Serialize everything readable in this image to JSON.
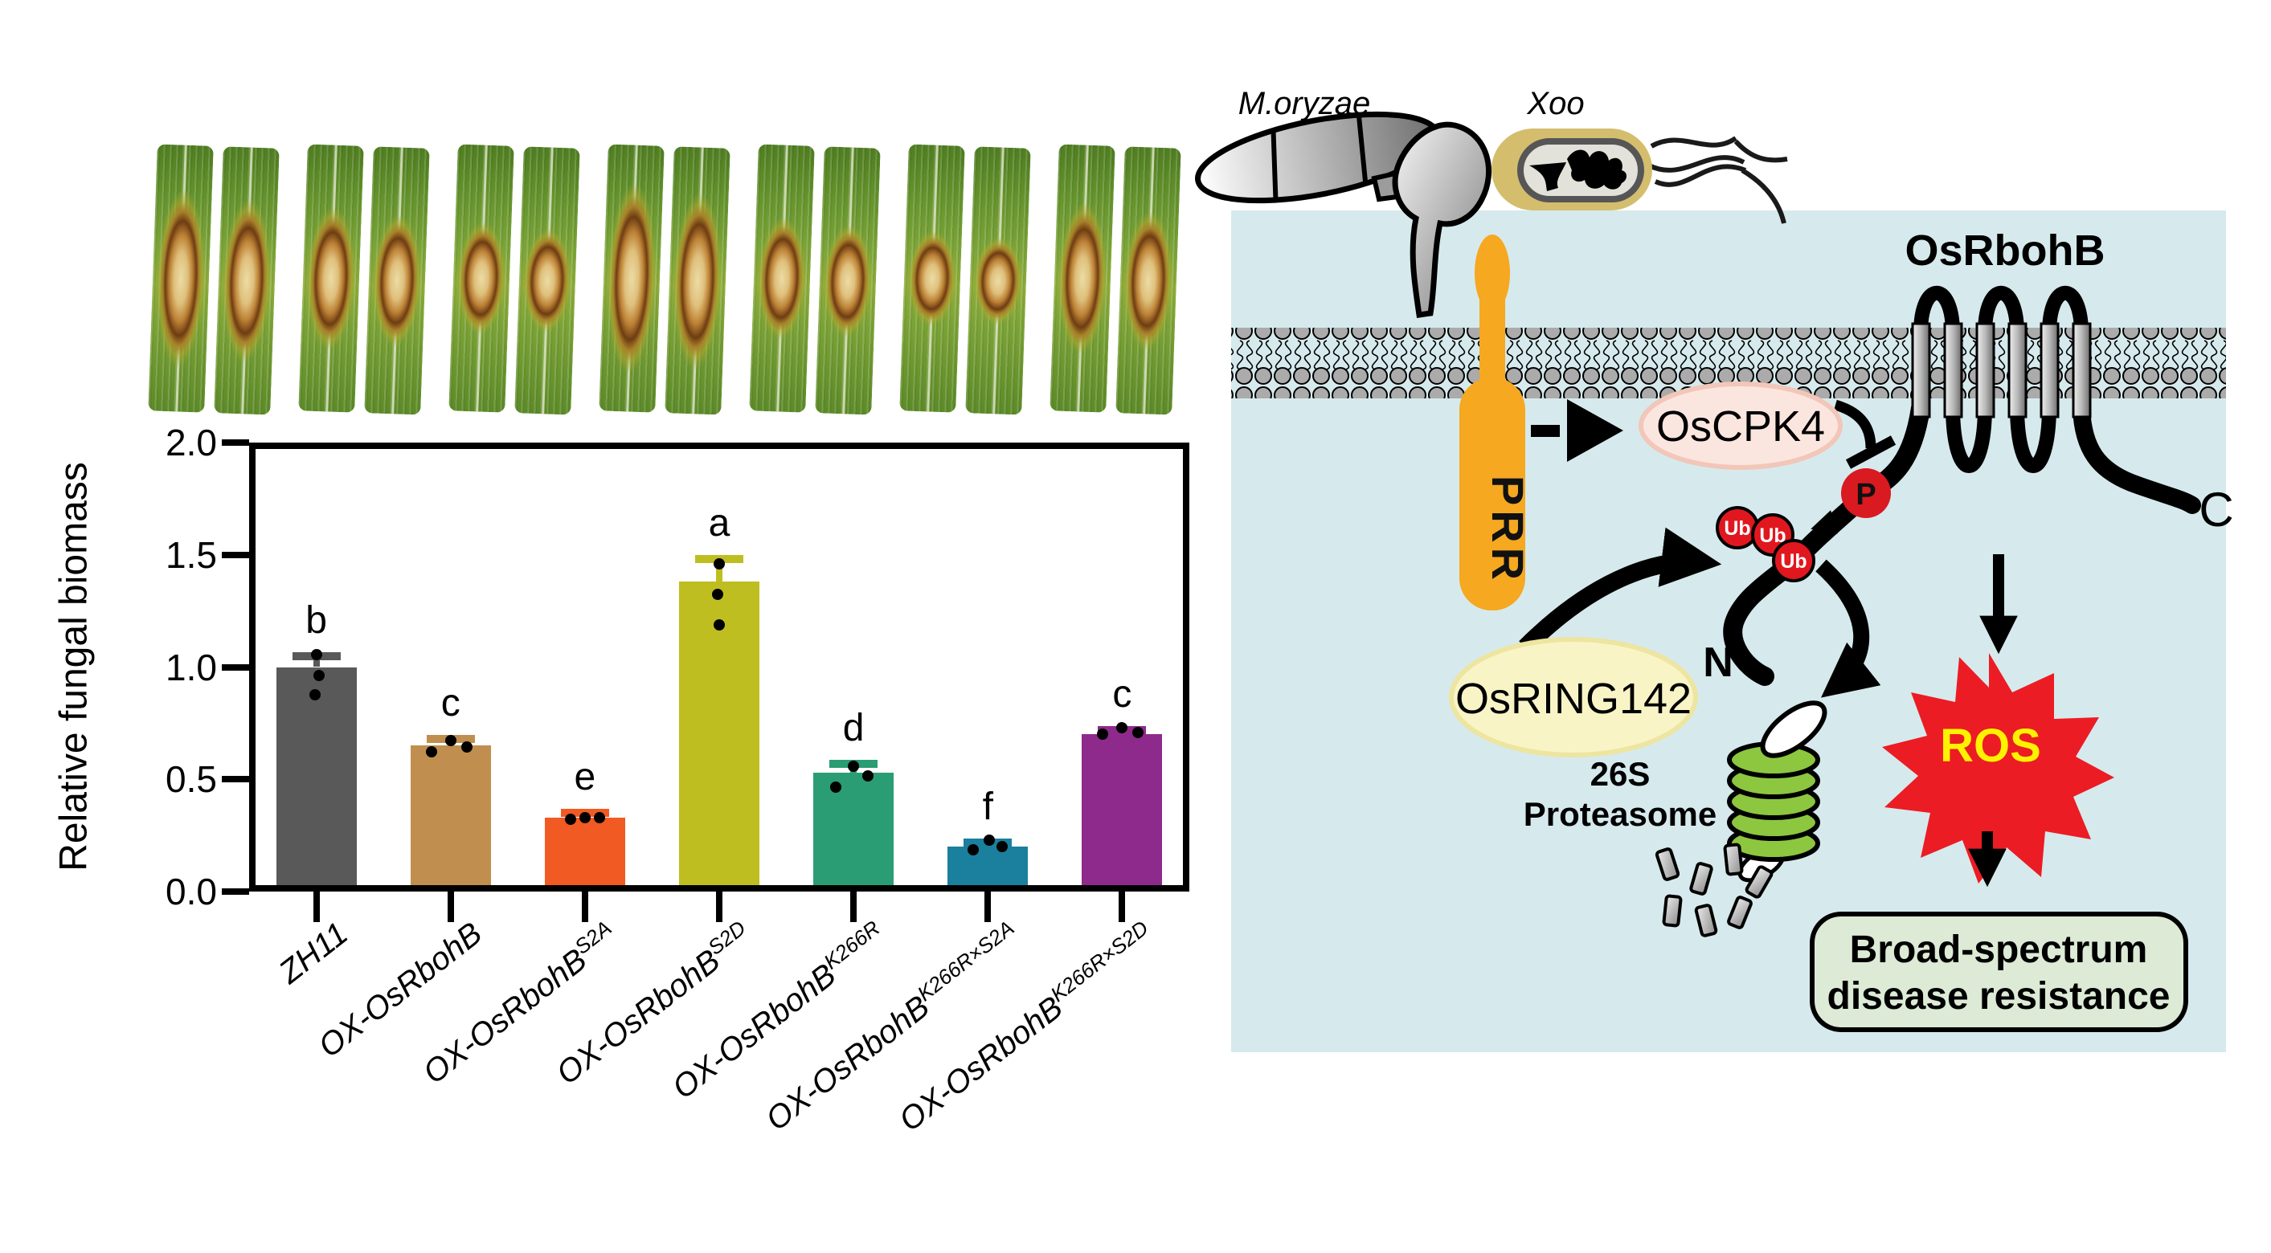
{
  "figure": {
    "background": "#ffffff"
  },
  "leaf_panel": {
    "count": 7,
    "note_genotypes_order": [
      "ZH11",
      "OX-OsRbohB",
      "OX-OsRbohB S2A",
      "OX-OsRbohB S2D",
      "OX-OsRbohB K266R",
      "OX-OsRbohB K266R×S2A",
      "OX-OsRbohB K266R×S2D"
    ],
    "lesion_sizes": [
      0.82,
      0.66,
      0.52,
      0.88,
      0.56,
      0.44,
      0.7
    ]
  },
  "chart_data": {
    "type": "bar",
    "title": "",
    "xlabel": "",
    "ylabel": "Relative fungal biomass",
    "ylim": [
      0,
      2.0
    ],
    "yticks": [
      "0.0",
      "0.5",
      "1.0",
      "1.5",
      "2.0"
    ],
    "grid": false,
    "legend": false,
    "categories": [
      {
        "base": "ZH11",
        "sup": ""
      },
      {
        "base": "OX-OsRbohB",
        "sup": ""
      },
      {
        "base": "OX-OsRbohB",
        "sup": "S2A"
      },
      {
        "base": "OX-OsRbohB",
        "sup": "S2D"
      },
      {
        "base": "OX-OsRbohB",
        "sup": "K266R"
      },
      {
        "base": "OX-OsRbohB",
        "sup": "K266R×S2A"
      },
      {
        "base": "OX-OsRbohB",
        "sup": "K266R×S2D"
      }
    ],
    "values": [
      1.0,
      0.65,
      0.33,
      1.38,
      0.53,
      0.2,
      0.7
    ],
    "errors": [
      0.05,
      0.03,
      0.02,
      0.1,
      0.04,
      0.02,
      0.02
    ],
    "sig_letters": [
      "b",
      "c",
      "e",
      "a",
      "d",
      "f",
      "c"
    ],
    "bar_colors": [
      "#595959",
      "#C08E4E",
      "#F15A22",
      "#BFBE20",
      "#2A9D74",
      "#1B7F9E",
      "#8E2A8B"
    ],
    "point_offsets": [
      [
        [
          0,
          -16
        ],
        [
          3,
          10
        ],
        [
          -2,
          34
        ]
      ],
      [
        [
          -24,
          8
        ],
        [
          0,
          -6
        ],
        [
          20,
          2
        ]
      ],
      [
        [
          -18,
          2
        ],
        [
          0,
          0
        ],
        [
          18,
          0
        ]
      ],
      [
        [
          0,
          -22
        ],
        [
          -2,
          16
        ],
        [
          0,
          54
        ]
      ],
      [
        [
          -22,
          18
        ],
        [
          0,
          -8
        ],
        [
          18,
          4
        ]
      ],
      [
        [
          -18,
          4
        ],
        [
          2,
          -8
        ],
        [
          18,
          0
        ]
      ],
      [
        [
          -24,
          0
        ],
        [
          0,
          -8
        ],
        [
          20,
          -2
        ]
      ]
    ]
  },
  "diagram": {
    "pathogens": {
      "fungus": "M.oryzae",
      "bacterium": "Xoo"
    },
    "labels": {
      "prr": "PRR",
      "kinase": "OsCPK4",
      "nadph_oxidase": "OsRbohB",
      "e3_ligase": "OsRING142",
      "proteasome_line1": "26S",
      "proteasome_line2": "Proteasome",
      "ros": "ROS",
      "n_terminus": "N",
      "c_terminus": "C",
      "phospho": "P",
      "ubiquitin": "Ub",
      "outcome_line1": "Broad-spectrum",
      "outcome_line2": "disease resistance"
    },
    "colors": {
      "cell": "#D6EAED",
      "prr": "#F5A820",
      "kinase_fill": "#FBE6DF",
      "kinase_stroke": "#F2C6B8",
      "e3_fill": "#F8F4C6",
      "e3_stroke": "#EDE5A0",
      "ub": "#E11720",
      "phospho": "#D91A21",
      "ros_star": "#EC1C24",
      "ros_text": "#FFF200",
      "proteasome": "#8DC63F",
      "outcome_fill": "#DCEAD6",
      "membrane_head": "#ABABAB",
      "xoo_capsule": "#D4BE6E",
      "xoo_body": "#E2E2DA"
    }
  }
}
